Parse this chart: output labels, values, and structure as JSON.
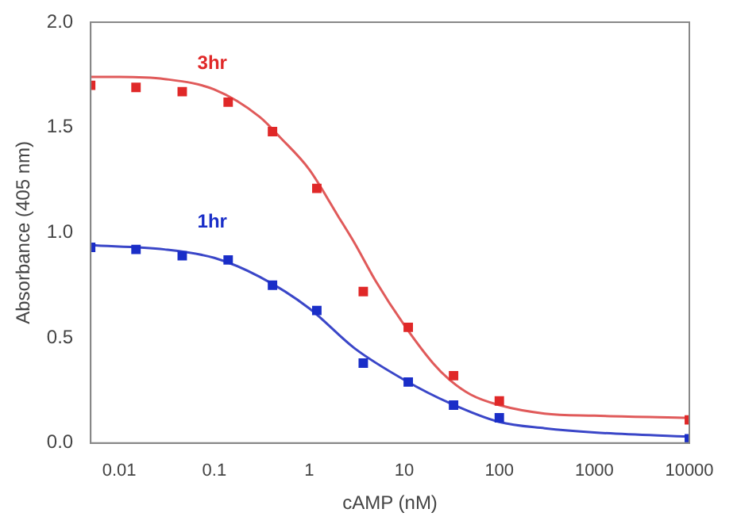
{
  "chart_data": {
    "type": "scatter",
    "xlabel": "cAMP (nM)",
    "ylabel": "Absorbance (405 nm)",
    "log": "x",
    "grid": false,
    "legend": false,
    "marker": "square",
    "x": [
      0.005,
      0.015,
      0.046,
      0.14,
      0.41,
      1.2,
      3.7,
      11,
      33,
      100,
      10000
    ],
    "xlim": [
      0.005,
      10000
    ],
    "xticks": [
      0.01,
      0.1,
      1,
      10,
      100,
      1000,
      10000
    ],
    "ylim": [
      0,
      2
    ],
    "yticks": [
      {
        "value": 0,
        "label": "0.0"
      },
      0.5,
      {
        "value": 1,
        "label": "1.0"
      },
      1.5,
      {
        "value": 2,
        "label": "2.0"
      }
    ],
    "series": [
      {
        "name": "3hr",
        "color": "#e02828",
        "values": [
          1.7,
          1.69,
          1.67,
          1.62,
          1.48,
          1.21,
          0.72,
          0.55,
          0.32,
          0.2,
          0.11
        ]
      },
      {
        "name": "1hr",
        "color": "#1a2ec8",
        "values": [
          0.93,
          0.92,
          0.89,
          0.87,
          0.75,
          0.63,
          0.38,
          0.29,
          0.18,
          0.12,
          0.02
        ]
      },
      {
        "type": "line",
        "marker": "none",
        "color": "#e05a5a",
        "x": [
          0.005,
          0.01,
          0.03,
          0.1,
          0.3,
          0.5,
          1,
          2,
          3,
          5,
          10,
          20,
          30,
          50,
          100,
          300,
          1000,
          10000
        ],
        "values": [
          1.74,
          1.74,
          1.73,
          1.68,
          1.55,
          1.45,
          1.3,
          1.08,
          0.95,
          0.77,
          0.56,
          0.38,
          0.3,
          0.23,
          0.18,
          0.14,
          0.13,
          0.12
        ]
      },
      {
        "type": "line",
        "marker": "none",
        "color": "#3a46c8",
        "x": [
          0.005,
          0.03,
          0.1,
          0.3,
          1,
          3,
          10,
          30,
          100,
          300,
          1000,
          10000
        ],
        "values": [
          0.94,
          0.92,
          0.88,
          0.79,
          0.64,
          0.45,
          0.3,
          0.19,
          0.1,
          0.07,
          0.05,
          0.03
        ]
      }
    ]
  }
}
